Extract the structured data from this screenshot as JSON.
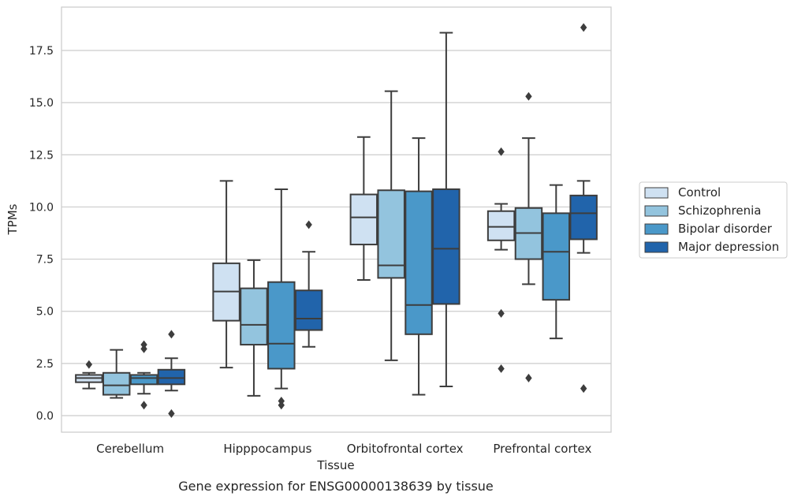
{
  "chart_data": {
    "type": "box",
    "caption": "Gene expression for ENSG00000138639 by tissue",
    "xlabel": "Tissue",
    "ylabel": "TPMs",
    "ylim": [
      -0.8,
      19.5
    ],
    "yticks": [
      0.0,
      2.5,
      5.0,
      7.5,
      10.0,
      12.5,
      15.0,
      17.5
    ],
    "ytick_labels": [
      "0.0",
      "2.5",
      "5.0",
      "7.5",
      "10.0",
      "12.5",
      "15.0",
      "17.5"
    ],
    "grid": "horizontal",
    "legend_position": "right",
    "categories": [
      "Cerebellum",
      "Hipppocampus",
      "Orbitofrontal cortex",
      "Prefrontal cortex"
    ],
    "series": [
      {
        "name": "Control",
        "color": "#cfe1f2",
        "boxes": [
          {
            "whislo": 1.3,
            "q1": 1.6,
            "med": 1.8,
            "q3": 1.95,
            "whishi": 2.05,
            "fliers": [
              2.45
            ]
          },
          {
            "whislo": 2.3,
            "q1": 4.55,
            "med": 5.95,
            "q3": 7.3,
            "whishi": 11.25,
            "fliers": []
          },
          {
            "whislo": 6.5,
            "q1": 8.2,
            "med": 9.5,
            "q3": 10.6,
            "whishi": 13.35,
            "fliers": []
          },
          {
            "whislo": 7.95,
            "q1": 8.4,
            "med": 9.05,
            "q3": 9.8,
            "whishi": 10.15,
            "fliers": [
              12.65,
              4.9,
              2.25
            ]
          }
        ]
      },
      {
        "name": "Schizophrenia",
        "color": "#93c4de",
        "boxes": [
          {
            "whislo": 0.85,
            "q1": 1.0,
            "med": 1.45,
            "q3": 2.05,
            "whishi": 3.15,
            "fliers": []
          },
          {
            "whislo": 0.95,
            "q1": 3.4,
            "med": 4.35,
            "q3": 6.1,
            "whishi": 7.45,
            "fliers": []
          },
          {
            "whislo": 2.65,
            "q1": 6.6,
            "med": 7.2,
            "q3": 10.8,
            "whishi": 15.55,
            "fliers": []
          },
          {
            "whislo": 6.3,
            "q1": 7.5,
            "med": 8.75,
            "q3": 9.95,
            "whishi": 13.3,
            "fliers": [
              15.3,
              1.8
            ]
          }
        ]
      },
      {
        "name": "Bipolar disorder",
        "color": "#4a98c9",
        "boxes": [
          {
            "whislo": 1.05,
            "q1": 1.5,
            "med": 1.8,
            "q3": 1.95,
            "whishi": 2.05,
            "fliers": [
              3.4,
              3.2,
              0.5
            ]
          },
          {
            "whislo": 1.3,
            "q1": 2.25,
            "med": 3.45,
            "q3": 6.4,
            "whishi": 10.85,
            "fliers": [
              0.7,
              0.5
            ]
          },
          {
            "whislo": 1.0,
            "q1": 3.9,
            "med": 5.3,
            "q3": 10.75,
            "whishi": 13.3,
            "fliers": []
          },
          {
            "whislo": 3.7,
            "q1": 5.55,
            "med": 7.85,
            "q3": 9.7,
            "whishi": 11.05,
            "fliers": []
          }
        ]
      },
      {
        "name": "Major depression",
        "color": "#2164ab",
        "boxes": [
          {
            "whislo": 1.2,
            "q1": 1.5,
            "med": 1.8,
            "q3": 2.2,
            "whishi": 2.75,
            "fliers": [
              3.9,
              0.1
            ]
          },
          {
            "whislo": 3.3,
            "q1": 4.1,
            "med": 4.65,
            "q3": 6.0,
            "whishi": 7.85,
            "fliers": [
              9.15
            ]
          },
          {
            "whislo": 1.4,
            "q1": 5.35,
            "med": 8.0,
            "q3": 10.85,
            "whishi": 18.35,
            "fliers": []
          },
          {
            "whislo": 7.8,
            "q1": 8.45,
            "med": 9.7,
            "q3": 10.55,
            "whishi": 11.25,
            "fliers": [
              18.6,
              1.3
            ]
          }
        ]
      }
    ]
  }
}
